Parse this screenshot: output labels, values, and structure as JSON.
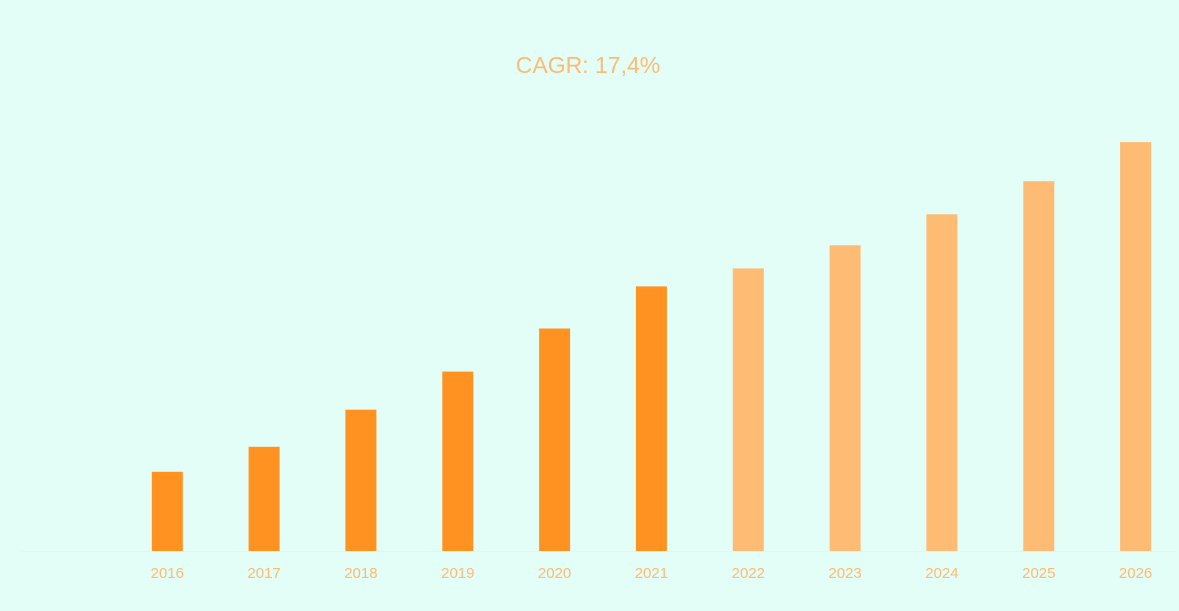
{
  "chart_data": {
    "type": "bar",
    "title": "CAGR: 17,4%",
    "xlabel": "",
    "ylabel": "",
    "categories": [
      "",
      "2016",
      "2017",
      "2018",
      "2019",
      "2020",
      "2021",
      "2022",
      "2023",
      "2024",
      "2025",
      "2026"
    ],
    "values": [
      0,
      79,
      104,
      141,
      179,
      222,
      264,
      282,
      305,
      336,
      369,
      408
    ],
    "bar_colors": [
      "#ff9220",
      "#ff9220",
      "#ff9220",
      "#ff9220",
      "#ff9220",
      "#ff9220",
      "#ff9220",
      "#fdbb73",
      "#fdbb73",
      "#fdbb73",
      "#fdbb73",
      "#fdbb73"
    ],
    "ylim": [
      0,
      450
    ],
    "grid": false,
    "legend": "none"
  },
  "colors": {
    "background": "#e3fdf7",
    "historical": "#ff9220",
    "forecast": "#fdbb73",
    "text": "#fdbb73",
    "axis": "#f2efe6"
  }
}
